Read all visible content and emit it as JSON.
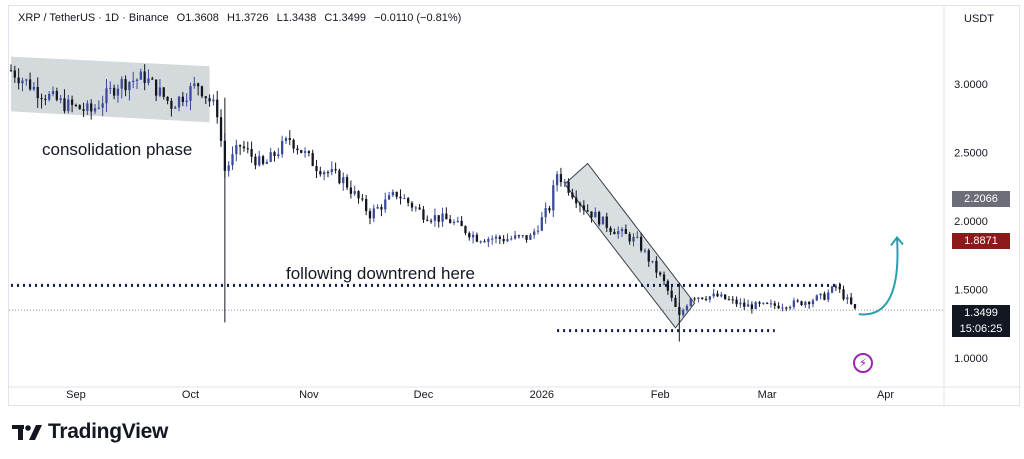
{
  "header": {
    "symbol": "XRP / TetherUS · 1D · Binance",
    "open": "O1.3608",
    "high": "H1.3726",
    "low": "L1.3438",
    "close": "C1.3499",
    "change": "−0.0110 (−0.81%)"
  },
  "currency": "USDT",
  "annotations": {
    "consolidation": "consolidation phase",
    "downtrend": "following downtrend here"
  },
  "price_labels": {
    "pre_close": "2.2066",
    "marked": "1.8871",
    "last": "1.3499",
    "countdown": "15:06:25"
  },
  "brand": "TradingView",
  "colors": {
    "up": "#3b4a9c",
    "down": "#131722",
    "box_fill": "#c9d1d3",
    "arrow": "#2a9fad",
    "marked_tag": "#8b1a1a",
    "gray_tag": "#6b6e78",
    "black_tag": "#131722",
    "bolt": "#9c27b0"
  },
  "icons": {
    "logo": "tradingview-logo-icon",
    "bolt": "lightning-bolt-icon"
  },
  "chart_data": {
    "type": "candlestick",
    "title": "XRP / TetherUS · 1D · Binance",
    "ylim": [
      0.72,
      3.52
    ],
    "y_ticks": [
      1.0,
      1.5,
      2.0,
      2.5,
      3.0
    ],
    "y_tick_labels": [
      "1.0000",
      "1.5000",
      "2.0000",
      "2.5000",
      "3.0000"
    ],
    "x_tick_labels": [
      "Sep",
      "Oct",
      "Nov",
      "Dec",
      "2026",
      "Feb",
      "Mar",
      "Apr"
    ],
    "x_tick_dates": [
      "2025-09-01",
      "2025-10-01",
      "2025-11-01",
      "2025-12-01",
      "2026-01-01",
      "2026-02-01",
      "2026-03-01",
      "2026-04-01"
    ],
    "x_range": [
      "2025-08-15",
      "2026-04-15"
    ],
    "grid": false,
    "last_price": 1.3499,
    "dotted_levels": [
      {
        "price": 1.53,
        "from": "2025-08-15",
        "to": "2026-03-21"
      },
      {
        "price": 1.2,
        "from": "2026-01-05",
        "to": "2026-03-03"
      }
    ],
    "closes_weekly": [
      [
        "2025-08-15",
        3.1
      ],
      [
        "2025-08-22",
        2.95
      ],
      [
        "2025-08-29",
        2.85
      ],
      [
        "2025-09-05",
        2.8
      ],
      [
        "2025-09-12",
        3.0
      ],
      [
        "2025-09-19",
        3.05
      ],
      [
        "2025-09-26",
        2.85
      ],
      [
        "2025-10-03",
        3.0
      ],
      [
        "2025-10-08",
        2.8
      ],
      [
        "2025-10-10",
        2.37
      ],
      [
        "2025-10-14",
        2.55
      ],
      [
        "2025-10-20",
        2.4
      ],
      [
        "2025-10-27",
        2.6
      ],
      [
        "2025-11-03",
        2.4
      ],
      [
        "2025-11-10",
        2.3
      ],
      [
        "2025-11-17",
        2.05
      ],
      [
        "2025-11-24",
        2.2
      ],
      [
        "2025-12-01",
        2.05
      ],
      [
        "2025-12-08",
        2.0
      ],
      [
        "2025-12-15",
        1.88
      ],
      [
        "2025-12-22",
        1.87
      ],
      [
        "2025-12-29",
        1.88
      ],
      [
        "2026-01-03",
        2.1
      ],
      [
        "2026-01-05",
        2.35
      ],
      [
        "2026-01-12",
        2.1
      ],
      [
        "2026-01-19",
        1.95
      ],
      [
        "2026-01-26",
        1.85
      ],
      [
        "2026-02-02",
        1.55
      ],
      [
        "2026-02-06",
        1.3
      ],
      [
        "2026-02-09",
        1.45
      ],
      [
        "2026-02-16",
        1.45
      ],
      [
        "2026-02-23",
        1.38
      ],
      [
        "2026-03-02",
        1.38
      ],
      [
        "2026-03-09",
        1.4
      ],
      [
        "2026-03-16",
        1.45
      ],
      [
        "2026-03-19",
        1.52
      ],
      [
        "2026-03-24",
        1.3499
      ]
    ],
    "annotation_labels": [
      "consolidation phase",
      "following downtrend here"
    ]
  }
}
